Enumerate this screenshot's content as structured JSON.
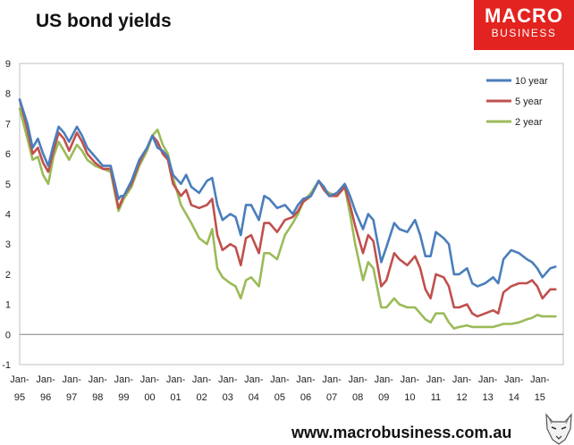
{
  "title": "US bond yields",
  "logo": {
    "line1": "MACRO",
    "line2": "BUSINESS"
  },
  "footer": "www.macrobusiness.com.au",
  "chart_data": {
    "type": "line",
    "title": "US bond yields",
    "xlabel": "",
    "ylabel": "",
    "ylim": [
      -1,
      9
    ],
    "xlim": [
      1995.0,
      2015.9
    ],
    "y_ticks": [
      -1,
      0,
      1,
      2,
      3,
      4,
      5,
      6,
      7,
      8,
      9
    ],
    "x_ticks": [
      {
        "top": "Jan-",
        "bottom": "95",
        "x": 1995
      },
      {
        "top": "Jan-",
        "bottom": "96",
        "x": 1996
      },
      {
        "top": "Jan-",
        "bottom": "97",
        "x": 1997
      },
      {
        "top": "Jan-",
        "bottom": "98",
        "x": 1998
      },
      {
        "top": "Jan-",
        "bottom": "99",
        "x": 1999
      },
      {
        "top": "Jan-",
        "bottom": "00",
        "x": 2000
      },
      {
        "top": "Jan-",
        "bottom": "01",
        "x": 2001
      },
      {
        "top": "Jan-",
        "bottom": "02",
        "x": 2002
      },
      {
        "top": "Jan-",
        "bottom": "03",
        "x": 2003
      },
      {
        "top": "Jan-",
        "bottom": "04",
        "x": 2004
      },
      {
        "top": "Jan-",
        "bottom": "05",
        "x": 2005
      },
      {
        "top": "Jan-",
        "bottom": "06",
        "x": 2006
      },
      {
        "top": "Jan-",
        "bottom": "07",
        "x": 2007
      },
      {
        "top": "Jan-",
        "bottom": "08",
        "x": 2008
      },
      {
        "top": "Jan-",
        "bottom": "09",
        "x": 2009
      },
      {
        "top": "Jan-",
        "bottom": "10",
        "x": 2010
      },
      {
        "top": "Jan-",
        "bottom": "11",
        "x": 2011
      },
      {
        "top": "Jan-",
        "bottom": "12",
        "x": 2012
      },
      {
        "top": "Jan-",
        "bottom": "13",
        "x": 2013
      },
      {
        "top": "Jan-",
        "bottom": "14",
        "x": 2014
      },
      {
        "top": "Jan-",
        "bottom": "15",
        "x": 2015
      }
    ],
    "grid": false,
    "legend_position": "top-right",
    "series": [
      {
        "name": "10 year",
        "color": "#4a7ebb",
        "points": [
          [
            1995.0,
            7.8
          ],
          [
            1995.3,
            7.0
          ],
          [
            1995.5,
            6.2
          ],
          [
            1995.7,
            6.5
          ],
          [
            1995.9,
            6.0
          ],
          [
            1996.1,
            5.6
          ],
          [
            1996.3,
            6.3
          ],
          [
            1996.5,
            6.9
          ],
          [
            1996.7,
            6.7
          ],
          [
            1996.9,
            6.4
          ],
          [
            1997.2,
            6.9
          ],
          [
            1997.4,
            6.6
          ],
          [
            1997.6,
            6.2
          ],
          [
            1997.9,
            5.9
          ],
          [
            1998.2,
            5.6
          ],
          [
            1998.5,
            5.6
          ],
          [
            1998.8,
            4.5
          ],
          [
            1998.9,
            4.6
          ],
          [
            1999.0,
            4.6
          ],
          [
            1999.3,
            5.1
          ],
          [
            1999.6,
            5.8
          ],
          [
            1999.9,
            6.2
          ],
          [
            2000.1,
            6.6
          ],
          [
            2000.3,
            6.2
          ],
          [
            2000.5,
            6.1
          ],
          [
            2000.7,
            5.9
          ],
          [
            2000.9,
            5.3
          ],
          [
            2001.2,
            5.0
          ],
          [
            2001.4,
            5.3
          ],
          [
            2001.6,
            4.9
          ],
          [
            2001.9,
            4.7
          ],
          [
            2002.2,
            5.1
          ],
          [
            2002.4,
            5.2
          ],
          [
            2002.6,
            4.3
          ],
          [
            2002.8,
            3.8
          ],
          [
            2003.1,
            4.0
          ],
          [
            2003.3,
            3.9
          ],
          [
            2003.5,
            3.3
          ],
          [
            2003.7,
            4.3
          ],
          [
            2003.9,
            4.3
          ],
          [
            2004.2,
            3.8
          ],
          [
            2004.4,
            4.6
          ],
          [
            2004.6,
            4.5
          ],
          [
            2004.9,
            4.2
          ],
          [
            2005.2,
            4.3
          ],
          [
            2005.5,
            4.0
          ],
          [
            2005.7,
            4.3
          ],
          [
            2005.9,
            4.5
          ],
          [
            2006.2,
            4.6
          ],
          [
            2006.5,
            5.1
          ],
          [
            2006.7,
            4.9
          ],
          [
            2006.9,
            4.6
          ],
          [
            2007.2,
            4.7
          ],
          [
            2007.5,
            5.0
          ],
          [
            2007.7,
            4.6
          ],
          [
            2007.9,
            4.1
          ],
          [
            2008.2,
            3.5
          ],
          [
            2008.4,
            4.0
          ],
          [
            2008.6,
            3.8
          ],
          [
            2008.9,
            2.4
          ],
          [
            2009.1,
            2.9
          ],
          [
            2009.4,
            3.7
          ],
          [
            2009.6,
            3.5
          ],
          [
            2009.9,
            3.4
          ],
          [
            2010.2,
            3.8
          ],
          [
            2010.4,
            3.3
          ],
          [
            2010.6,
            2.6
          ],
          [
            2010.8,
            2.6
          ],
          [
            2011.0,
            3.4
          ],
          [
            2011.3,
            3.2
          ],
          [
            2011.5,
            3.0
          ],
          [
            2011.7,
            2.0
          ],
          [
            2011.9,
            2.0
          ],
          [
            2012.2,
            2.2
          ],
          [
            2012.4,
            1.7
          ],
          [
            2012.6,
            1.6
          ],
          [
            2012.9,
            1.7
          ],
          [
            2013.2,
            1.9
          ],
          [
            2013.4,
            1.7
          ],
          [
            2013.6,
            2.5
          ],
          [
            2013.9,
            2.8
          ],
          [
            2014.2,
            2.7
          ],
          [
            2014.5,
            2.5
          ],
          [
            2014.7,
            2.4
          ],
          [
            2014.9,
            2.2
          ],
          [
            2015.1,
            1.9
          ],
          [
            2015.4,
            2.2
          ],
          [
            2015.6,
            2.25
          ]
        ]
      },
      {
        "name": "5 year",
        "color": "#c0504d",
        "points": [
          [
            1995.0,
            7.8
          ],
          [
            1995.3,
            6.8
          ],
          [
            1995.5,
            6.0
          ],
          [
            1995.7,
            6.2
          ],
          [
            1995.9,
            5.7
          ],
          [
            1996.1,
            5.4
          ],
          [
            1996.3,
            6.1
          ],
          [
            1996.5,
            6.7
          ],
          [
            1996.7,
            6.5
          ],
          [
            1996.9,
            6.1
          ],
          [
            1997.2,
            6.7
          ],
          [
            1997.4,
            6.4
          ],
          [
            1997.6,
            6.0
          ],
          [
            1997.9,
            5.7
          ],
          [
            1998.2,
            5.5
          ],
          [
            1998.5,
            5.5
          ],
          [
            1998.8,
            4.2
          ],
          [
            1999.0,
            4.6
          ],
          [
            1999.3,
            5.0
          ],
          [
            1999.6,
            5.7
          ],
          [
            1999.9,
            6.2
          ],
          [
            2000.1,
            6.6
          ],
          [
            2000.3,
            6.4
          ],
          [
            2000.5,
            6.0
          ],
          [
            2000.7,
            5.8
          ],
          [
            2000.9,
            5.0
          ],
          [
            2001.2,
            4.6
          ],
          [
            2001.4,
            4.8
          ],
          [
            2001.6,
            4.3
          ],
          [
            2001.9,
            4.2
          ],
          [
            2002.2,
            4.3
          ],
          [
            2002.4,
            4.5
          ],
          [
            2002.6,
            3.3
          ],
          [
            2002.8,
            2.8
          ],
          [
            2003.1,
            3.0
          ],
          [
            2003.3,
            2.9
          ],
          [
            2003.5,
            2.3
          ],
          [
            2003.7,
            3.2
          ],
          [
            2003.9,
            3.3
          ],
          [
            2004.2,
            2.7
          ],
          [
            2004.4,
            3.7
          ],
          [
            2004.6,
            3.7
          ],
          [
            2004.9,
            3.4
          ],
          [
            2005.2,
            3.8
          ],
          [
            2005.5,
            3.9
          ],
          [
            2005.7,
            4.1
          ],
          [
            2005.9,
            4.4
          ],
          [
            2006.2,
            4.6
          ],
          [
            2006.5,
            5.1
          ],
          [
            2006.7,
            4.8
          ],
          [
            2006.9,
            4.6
          ],
          [
            2007.2,
            4.6
          ],
          [
            2007.5,
            4.9
          ],
          [
            2007.7,
            4.3
          ],
          [
            2007.9,
            3.6
          ],
          [
            2008.2,
            2.7
          ],
          [
            2008.4,
            3.3
          ],
          [
            2008.6,
            3.1
          ],
          [
            2008.9,
            1.6
          ],
          [
            2009.1,
            1.8
          ],
          [
            2009.4,
            2.7
          ],
          [
            2009.6,
            2.5
          ],
          [
            2009.9,
            2.3
          ],
          [
            2010.2,
            2.6
          ],
          [
            2010.4,
            2.2
          ],
          [
            2010.6,
            1.5
          ],
          [
            2010.8,
            1.2
          ],
          [
            2011.0,
            2.0
          ],
          [
            2011.3,
            1.9
          ],
          [
            2011.5,
            1.6
          ],
          [
            2011.7,
            0.9
          ],
          [
            2011.9,
            0.9
          ],
          [
            2012.2,
            1.0
          ],
          [
            2012.4,
            0.7
          ],
          [
            2012.6,
            0.6
          ],
          [
            2012.9,
            0.7
          ],
          [
            2013.2,
            0.8
          ],
          [
            2013.4,
            0.7
          ],
          [
            2013.6,
            1.4
          ],
          [
            2013.9,
            1.6
          ],
          [
            2014.2,
            1.7
          ],
          [
            2014.5,
            1.7
          ],
          [
            2014.7,
            1.8
          ],
          [
            2014.9,
            1.6
          ],
          [
            2015.1,
            1.2
          ],
          [
            2015.4,
            1.5
          ],
          [
            2015.6,
            1.5
          ]
        ]
      },
      {
        "name": "2 year",
        "color": "#9bbb59",
        "points": [
          [
            1995.0,
            7.5
          ],
          [
            1995.3,
            6.5
          ],
          [
            1995.5,
            5.8
          ],
          [
            1995.7,
            5.9
          ],
          [
            1995.9,
            5.3
          ],
          [
            1996.1,
            5.0
          ],
          [
            1996.3,
            5.9
          ],
          [
            1996.5,
            6.4
          ],
          [
            1996.7,
            6.1
          ],
          [
            1996.9,
            5.8
          ],
          [
            1997.2,
            6.3
          ],
          [
            1997.4,
            6.1
          ],
          [
            1997.6,
            5.8
          ],
          [
            1997.9,
            5.6
          ],
          [
            1998.2,
            5.5
          ],
          [
            1998.5,
            5.4
          ],
          [
            1998.8,
            4.1
          ],
          [
            1999.0,
            4.5
          ],
          [
            1999.3,
            4.9
          ],
          [
            1999.6,
            5.6
          ],
          [
            1999.9,
            6.1
          ],
          [
            2000.1,
            6.6
          ],
          [
            2000.3,
            6.8
          ],
          [
            2000.5,
            6.3
          ],
          [
            2000.7,
            6.0
          ],
          [
            2000.9,
            5.2
          ],
          [
            2001.2,
            4.3
          ],
          [
            2001.4,
            4.0
          ],
          [
            2001.6,
            3.7
          ],
          [
            2001.9,
            3.2
          ],
          [
            2002.2,
            3.0
          ],
          [
            2002.4,
            3.5
          ],
          [
            2002.6,
            2.2
          ],
          [
            2002.8,
            1.9
          ],
          [
            2003.1,
            1.7
          ],
          [
            2003.3,
            1.6
          ],
          [
            2003.5,
            1.2
          ],
          [
            2003.7,
            1.8
          ],
          [
            2003.9,
            1.9
          ],
          [
            2004.2,
            1.6
          ],
          [
            2004.4,
            2.7
          ],
          [
            2004.6,
            2.7
          ],
          [
            2004.9,
            2.5
          ],
          [
            2005.2,
            3.3
          ],
          [
            2005.5,
            3.7
          ],
          [
            2005.7,
            4.0
          ],
          [
            2005.9,
            4.4
          ],
          [
            2006.2,
            4.7
          ],
          [
            2006.5,
            5.1
          ],
          [
            2006.7,
            4.8
          ],
          [
            2006.9,
            4.7
          ],
          [
            2007.2,
            4.6
          ],
          [
            2007.5,
            4.9
          ],
          [
            2007.7,
            4.0
          ],
          [
            2007.9,
            3.0
          ],
          [
            2008.2,
            1.8
          ],
          [
            2008.4,
            2.4
          ],
          [
            2008.6,
            2.2
          ],
          [
            2008.9,
            0.9
          ],
          [
            2009.1,
            0.9
          ],
          [
            2009.4,
            1.2
          ],
          [
            2009.6,
            1.0
          ],
          [
            2009.9,
            0.9
          ],
          [
            2010.2,
            0.9
          ],
          [
            2010.4,
            0.7
          ],
          [
            2010.6,
            0.5
          ],
          [
            2010.8,
            0.4
          ],
          [
            2011.0,
            0.7
          ],
          [
            2011.3,
            0.7
          ],
          [
            2011.5,
            0.4
          ],
          [
            2011.7,
            0.2
          ],
          [
            2011.9,
            0.25
          ],
          [
            2012.2,
            0.3
          ],
          [
            2012.4,
            0.25
          ],
          [
            2012.6,
            0.25
          ],
          [
            2012.9,
            0.25
          ],
          [
            2013.2,
            0.25
          ],
          [
            2013.4,
            0.3
          ],
          [
            2013.6,
            0.35
          ],
          [
            2013.9,
            0.35
          ],
          [
            2014.2,
            0.4
          ],
          [
            2014.5,
            0.5
          ],
          [
            2014.7,
            0.55
          ],
          [
            2014.9,
            0.65
          ],
          [
            2015.1,
            0.6
          ],
          [
            2015.4,
            0.6
          ],
          [
            2015.6,
            0.6
          ]
        ]
      }
    ]
  }
}
